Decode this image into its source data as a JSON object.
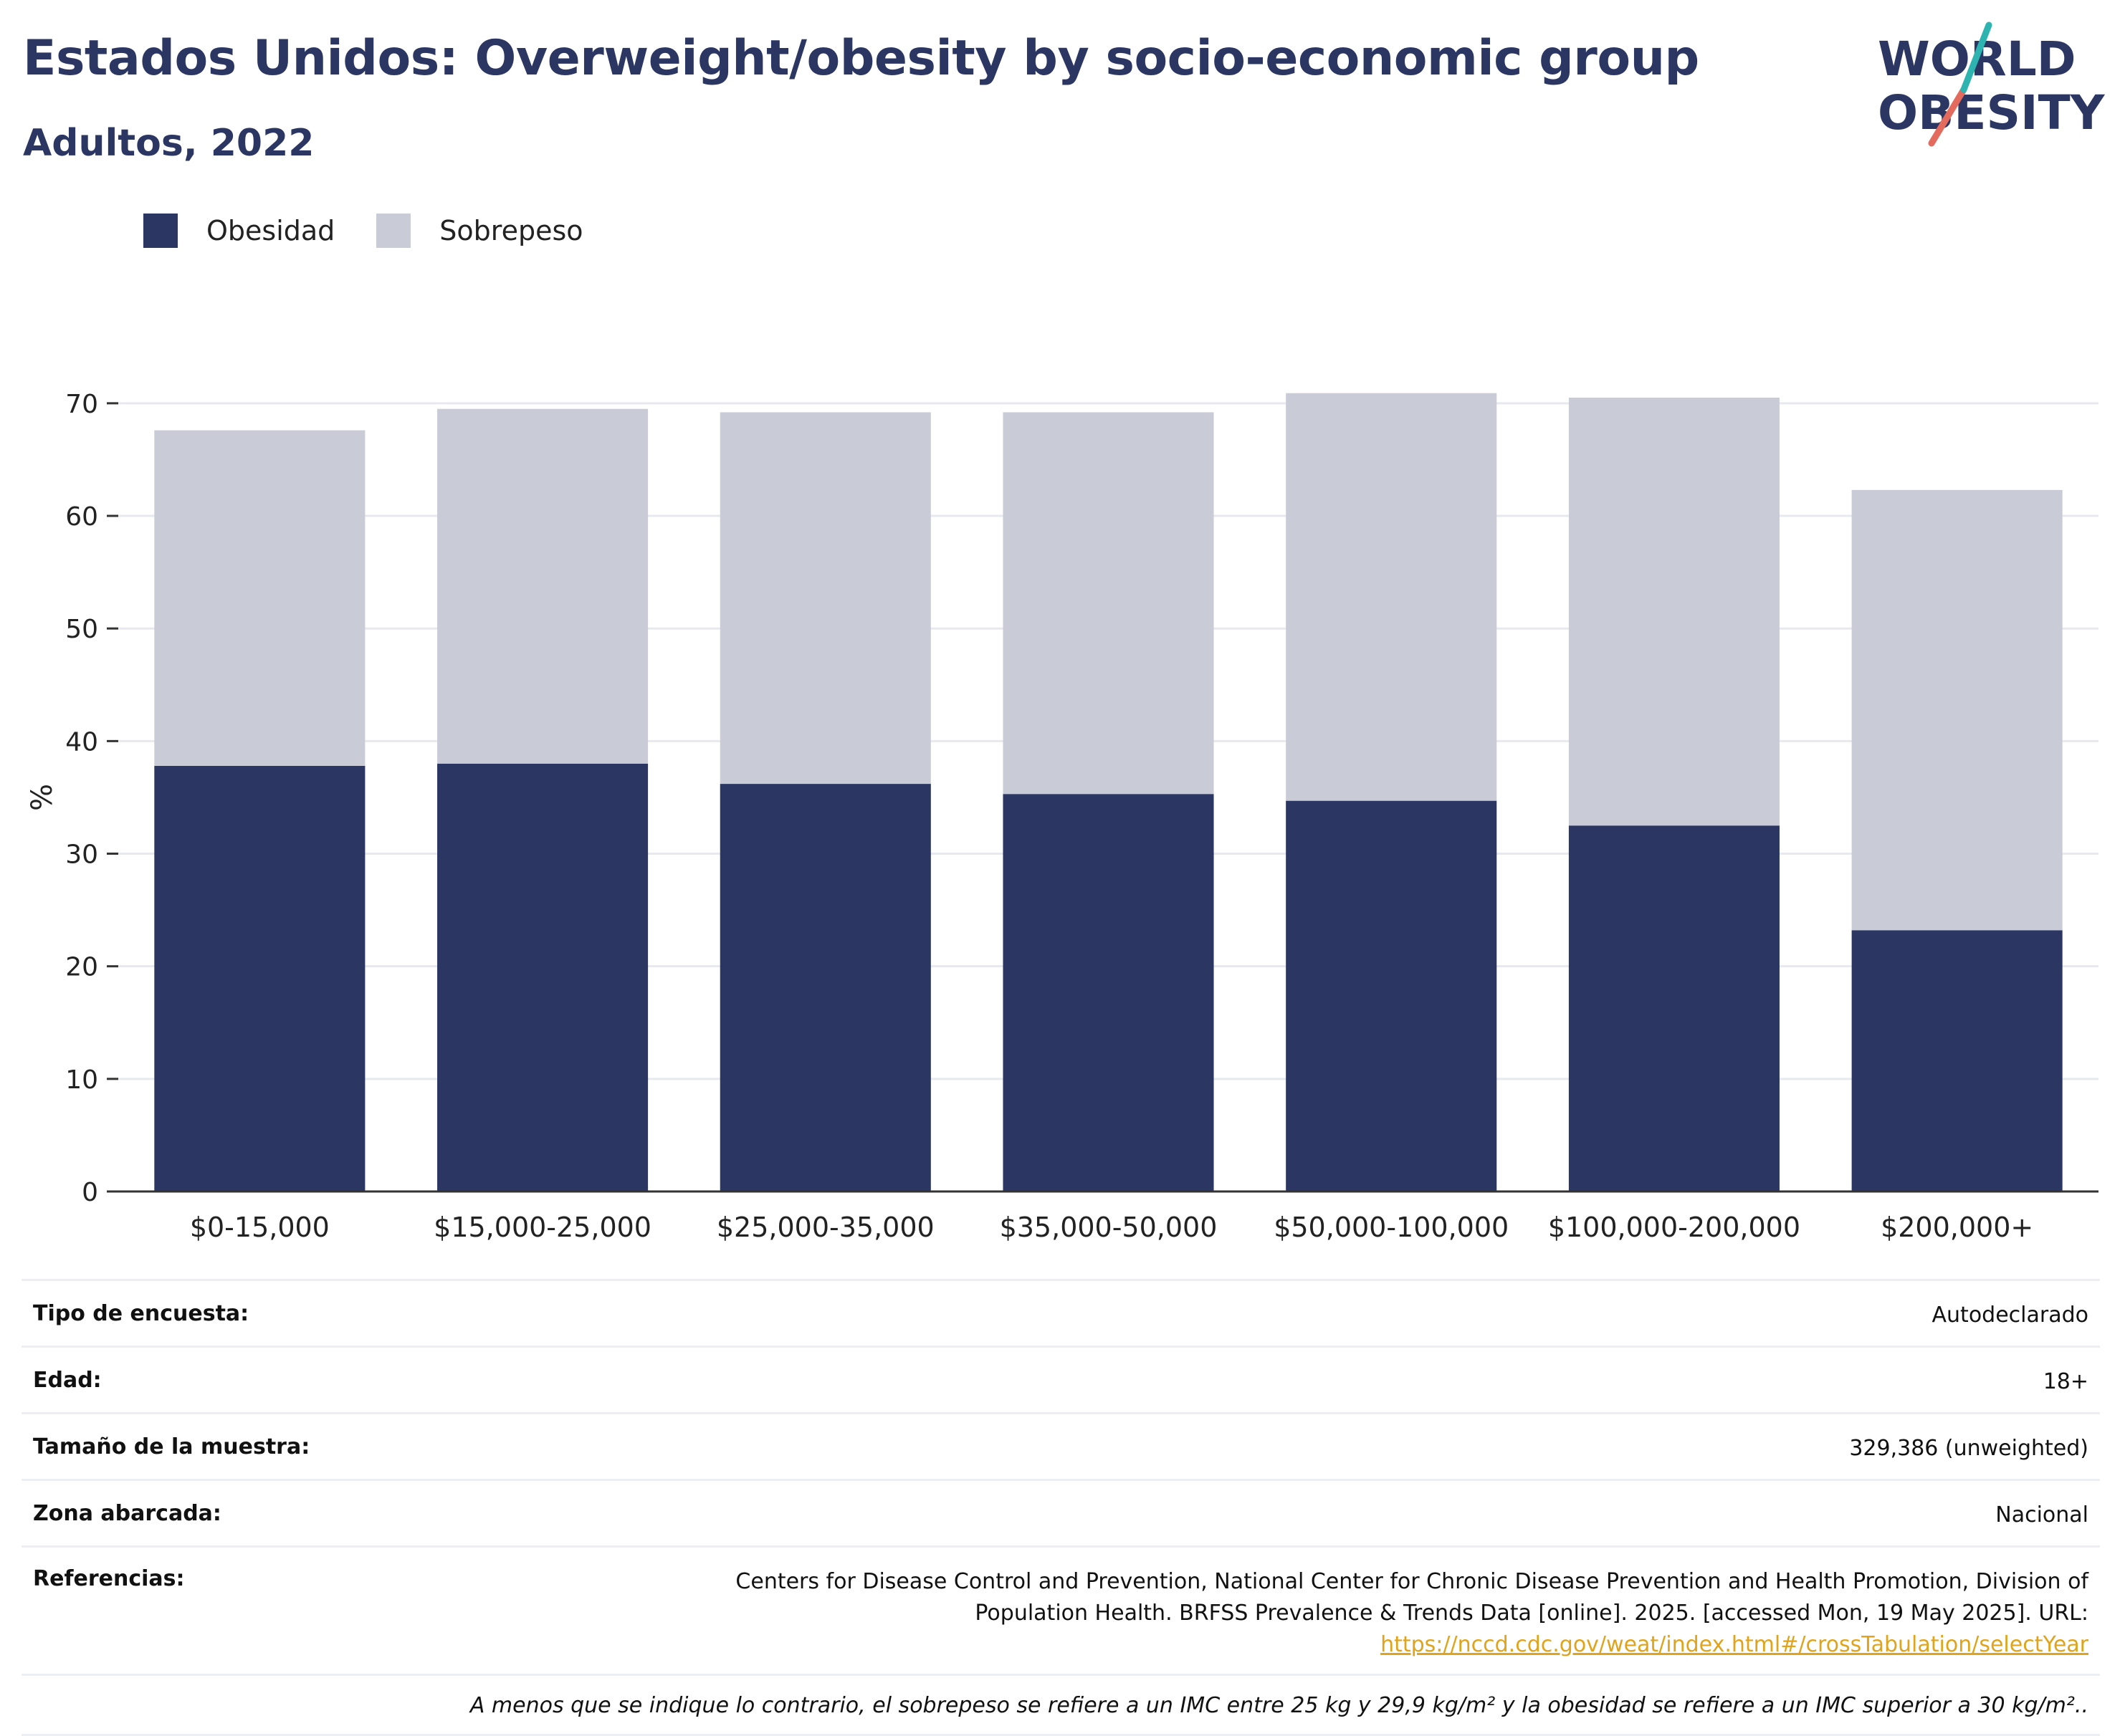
{
  "header": {
    "title": "Estados Unidos: Overweight/obesity by socio-economic group",
    "subtitle": "Adultos, 2022"
  },
  "logo": {
    "line1": "WORLD",
    "line2": "OBESITY",
    "icon": "world-obesity-logo"
  },
  "legend": {
    "items": [
      {
        "label": "Obesidad",
        "color": "#2b3663"
      },
      {
        "label": "Sobrepeso",
        "color": "#c9cbd7"
      }
    ]
  },
  "chart_data": {
    "type": "bar",
    "stacked": true,
    "categories": [
      "$0-15,000",
      "$15,000-25,000",
      "$25,000-35,000",
      "$35,000-50,000",
      "$50,000-100,000",
      "$100,000-200,000",
      "$200,000+"
    ],
    "series": [
      {
        "name": "Obesidad",
        "color": "#2b3663",
        "values": [
          37.8,
          38.0,
          36.2,
          35.3,
          34.7,
          32.5,
          23.2
        ]
      },
      {
        "name": "Sobrepeso",
        "color": "#c9cbd7",
        "values": [
          29.8,
          31.5,
          33.0,
          33.9,
          36.2,
          38.0,
          39.1
        ]
      }
    ],
    "ylabel": "%",
    "xlabel": "",
    "ylim": [
      0,
      74
    ],
    "yticks": [
      0,
      10,
      20,
      30,
      40,
      50,
      60,
      70
    ],
    "grid": true,
    "legend_position": "top-left"
  },
  "info": {
    "rows": [
      {
        "label": "Tipo de encuesta:",
        "value": "Autodeclarado"
      },
      {
        "label": "Edad:",
        "value": "18+"
      },
      {
        "label": "Tamaño de la muestra:",
        "value": "329,386 (unweighted)"
      },
      {
        "label": "Zona abarcada:",
        "value": "Nacional"
      }
    ],
    "references": {
      "label": "Referencias:",
      "line1": "Centers for Disease Control and Prevention, National Center for Chronic Disease Prevention and Health Promotion, Division of",
      "line2": "Population Health. BRFSS Prevalence & Trends Data [online]. 2025. [accessed Mon, 19 May 2025]. URL:",
      "url": "https://nccd.cdc.gov/weat/index.html#/crossTabulation/selectYear"
    },
    "note": "A menos que se indique lo contrario, el sobrepeso se refiere a un IMC entre 25 kg y 29,9 kg/m² y la obesidad se refiere a un IMC superior a 30 kg/m².."
  }
}
